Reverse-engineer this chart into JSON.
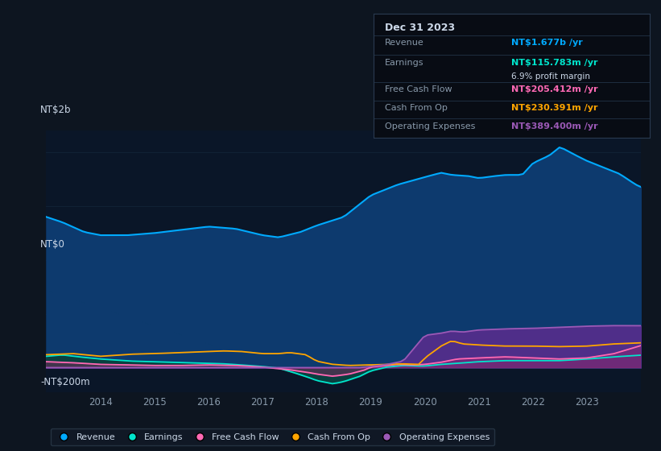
{
  "background_color": "#0d1520",
  "plot_bg_color": "#0a1628",
  "revenue_color": "#00aaff",
  "earnings_color": "#00e5cc",
  "fcf_color": "#ff69b4",
  "cashop_color": "#ffa500",
  "opex_color": "#9b59b6",
  "revenue_fill": "#0d3a6e",
  "earnings_fill": "#0a4040",
  "opex_fill": "#5b2d8e",
  "tooltip": {
    "date": "Dec 31 2023",
    "revenue_label": "NT$1.677b",
    "earnings_label": "NT$115.783m",
    "profit_margin": "6.9%",
    "fcf_label": "NT$205.412m",
    "cashop_label": "NT$230.391m",
    "opex_label": "NT$389.400m"
  },
  "label_color": "#8899aa",
  "white_color": "#ccd8e8",
  "grid_color": "#1e3a5f",
  "zero_line_color": "#2a4a6a",
  "legend_bg": "#111927",
  "legend_border": "#2a3a4a"
}
